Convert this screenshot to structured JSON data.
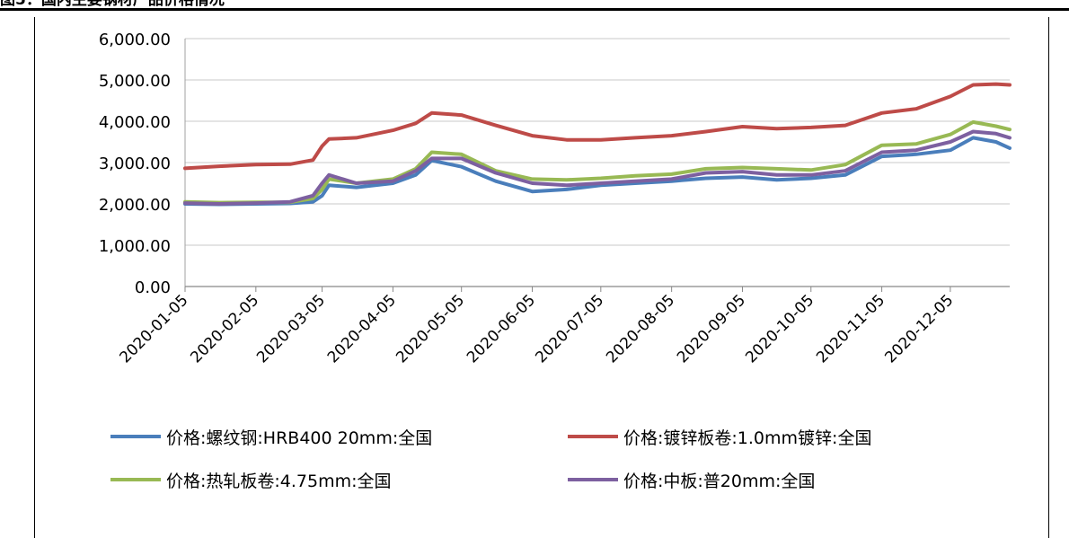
{
  "figure": {
    "caption": "图5：国内主要钢材产品价格情况"
  },
  "chart_data": {
    "type": "line",
    "title": "",
    "xlabel": "",
    "ylabel": "",
    "ylim": [
      0,
      6000
    ],
    "yticks": [
      "0.00",
      "1,000.00",
      "2,000.00",
      "3,000.00",
      "4,000.00",
      "5,000.00",
      "6,000.00"
    ],
    "xticks": [
      "2020-01-05",
      "2020-02-05",
      "2020-03-05",
      "2020-04-05",
      "2020-05-05",
      "2020-06-05",
      "2020-07-05",
      "2020-08-05",
      "2020-09-05",
      "2020-10-05",
      "2020-11-05",
      "2020-12-05"
    ],
    "xlim": [
      "2020-01-05",
      "2020-12-31"
    ],
    "grid": true,
    "legend_position": "bottom",
    "x": [
      "2020-01-05",
      "2020-01-20",
      "2020-02-05",
      "2020-02-20",
      "2020-03-01",
      "2020-03-05",
      "2020-03-08",
      "2020-03-20",
      "2020-04-05",
      "2020-04-15",
      "2020-04-22",
      "2020-05-05",
      "2020-05-20",
      "2020-06-05",
      "2020-06-20",
      "2020-07-05",
      "2020-07-20",
      "2020-08-05",
      "2020-08-20",
      "2020-09-05",
      "2020-09-20",
      "2020-10-05",
      "2020-10-20",
      "2020-11-05",
      "2020-11-20",
      "2020-12-05",
      "2020-12-15",
      "2020-12-25",
      "2020-12-31"
    ],
    "series": [
      {
        "name": "价格:螺纹钢:HRB400 20mm:全国",
        "color": "#4a7ebb",
        "values": [
          2000,
          1990,
          2000,
          2010,
          2050,
          2200,
          2450,
          2400,
          2500,
          2700,
          3050,
          2900,
          2550,
          2300,
          2350,
          2450,
          2500,
          2550,
          2620,
          2650,
          2580,
          2620,
          2700,
          3150,
          3200,
          3300,
          3600,
          3500,
          3350
        ]
      },
      {
        "name": "价格:镀锌板卷:1.0mm镀锌:全国",
        "color": "#be4b48",
        "values": [
          2860,
          2910,
          2950,
          2960,
          3060,
          3400,
          3570,
          3600,
          3780,
          3950,
          4200,
          4150,
          3900,
          3650,
          3550,
          3550,
          3600,
          3650,
          3750,
          3870,
          3820,
          3850,
          3900,
          4200,
          4300,
          4600,
          4880,
          4900,
          4880
        ]
      },
      {
        "name": "价格:热轧板卷:4.75mm:全国",
        "color": "#98b954",
        "values": [
          2050,
          2030,
          2040,
          2040,
          2130,
          2350,
          2600,
          2500,
          2600,
          2850,
          3250,
          3200,
          2800,
          2600,
          2580,
          2620,
          2680,
          2720,
          2850,
          2880,
          2850,
          2820,
          2950,
          3420,
          3450,
          3680,
          3980,
          3880,
          3800
        ]
      },
      {
        "name": "价格:中板:普20mm:全国",
        "color": "#7d60a0",
        "values": [
          2020,
          2000,
          2020,
          2050,
          2200,
          2500,
          2700,
          2500,
          2550,
          2800,
          3100,
          3100,
          2750,
          2500,
          2450,
          2500,
          2550,
          2600,
          2750,
          2780,
          2700,
          2700,
          2800,
          3250,
          3300,
          3500,
          3750,
          3700,
          3600
        ]
      }
    ]
  }
}
